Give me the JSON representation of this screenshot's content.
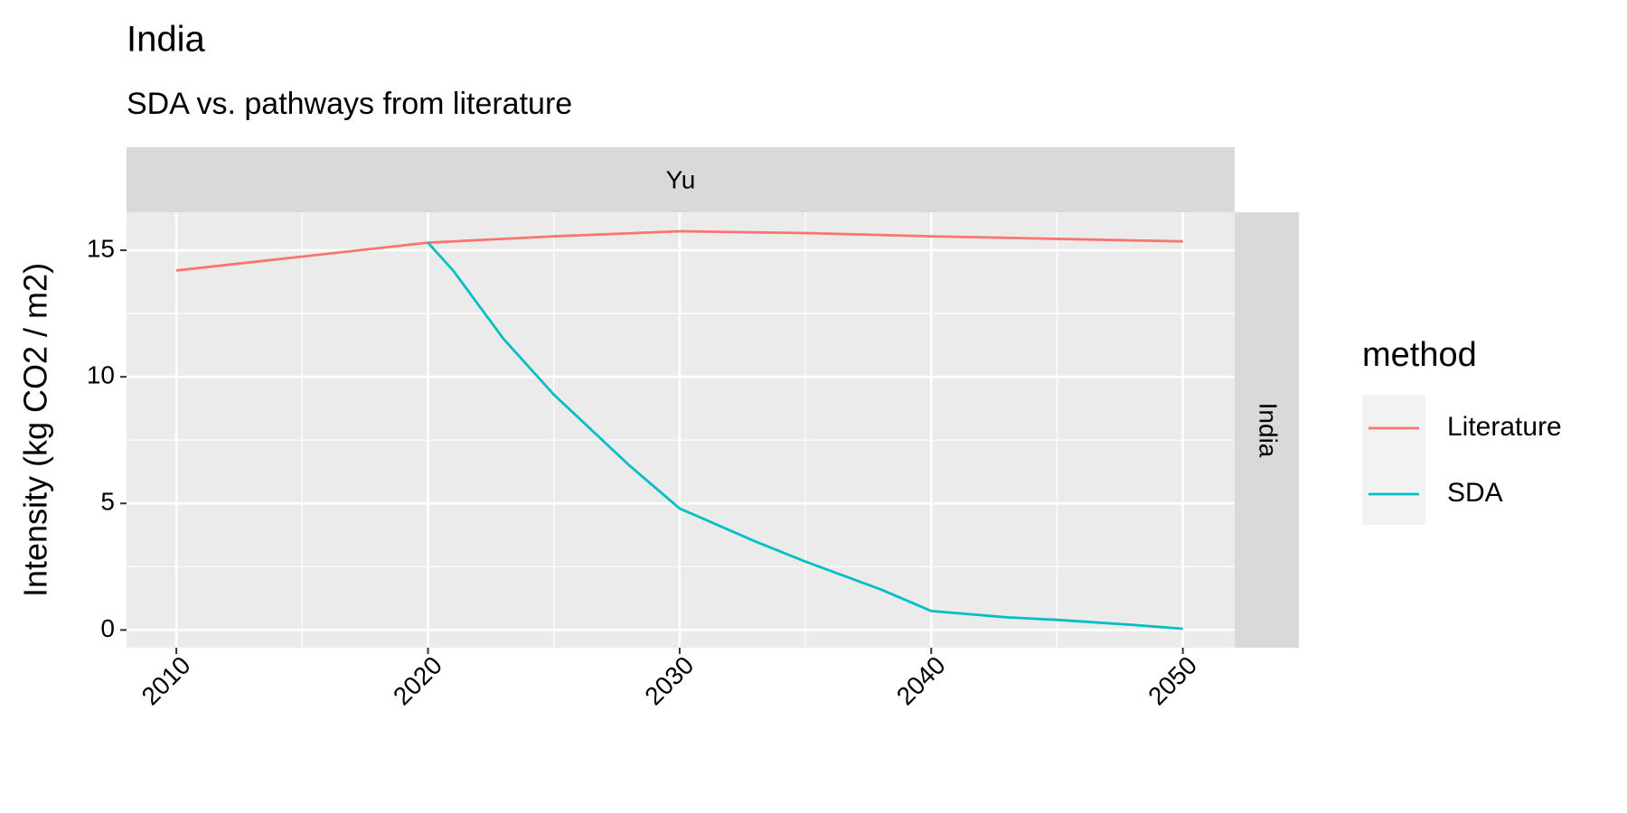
{
  "chart_data": {
    "type": "line",
    "title": "India",
    "subtitle": "SDA vs. pathways from literature",
    "facet_column": "Yu",
    "facet_row": "India",
    "y_label": "Intensity (kg CO2 / m2)",
    "legend_title": "method",
    "xlim": [
      2008.02,
      2052.06
    ],
    "xticks": [
      2010,
      2020,
      2030,
      2040,
      2050
    ],
    "ylim": [
      -0.7,
      16.5
    ],
    "yticks": [
      0,
      5,
      10,
      15
    ],
    "grid": true,
    "series": [
      {
        "name": "Literature",
        "color": "#F8766D",
        "x": [
          2010,
          2020,
          2025,
          2030,
          2035,
          2040,
          2045,
          2050
        ],
        "values": [
          14.2,
          15.3,
          15.55,
          15.75,
          15.68,
          15.55,
          15.45,
          15.35
        ]
      },
      {
        "name": "SDA",
        "color": "#00BFC4",
        "x": [
          2020,
          2021,
          2023,
          2025,
          2028,
          2030,
          2033,
          2035,
          2038,
          2040,
          2043,
          2045,
          2048,
          2050
        ],
        "values": [
          15.3,
          14.2,
          11.5,
          9.3,
          6.5,
          4.8,
          3.5,
          2.7,
          1.6,
          0.75,
          0.5,
          0.4,
          0.2,
          0.05
        ]
      }
    ]
  }
}
